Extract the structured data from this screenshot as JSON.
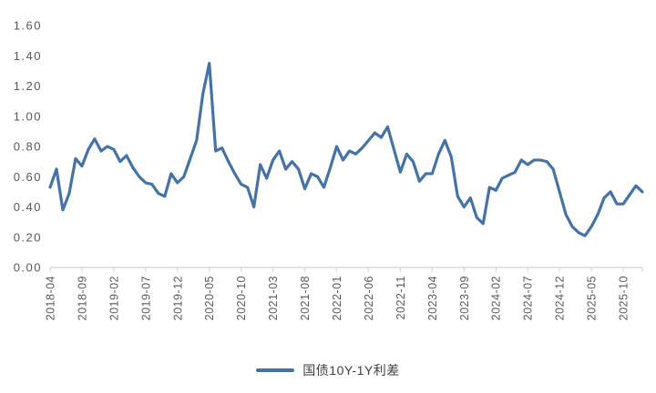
{
  "colors": {
    "series_blue": "#4573a7",
    "axis_gray": "#d9d9d9",
    "tick_label_gray": "#595959",
    "legend_text": "#404040",
    "background": "#ffffff"
  },
  "legend": {
    "label": "国债10Y-1Y利差"
  },
  "chart_data": {
    "type": "line",
    "title": "",
    "xlabel": "",
    "ylabel": "",
    "grid": false,
    "legend_position": "bottom",
    "ylim": [
      0.0,
      1.6
    ],
    "y_tick_labels": [
      "0.00",
      "0.20",
      "0.40",
      "0.60",
      "0.80",
      "1.00",
      "1.20",
      "1.40",
      "1.60"
    ],
    "x_tick_labels": [
      "2018-04",
      "2018-09",
      "2019-02",
      "2019-07",
      "2019-12",
      "2020-05",
      "2020-10",
      "2021-03",
      "2021-08",
      "2022-01",
      "2022-06",
      "2022-11",
      "2023-04",
      "2023-09",
      "2024-02",
      "2024-07",
      "2024-12",
      "2025-05",
      "2025-10"
    ],
    "x_tick_every": 5,
    "series": [
      {
        "name": "国债10Y-1Y利差",
        "color": "#4573a7",
        "x": [
          "2018-04",
          "2018-05",
          "2018-06",
          "2018-07",
          "2018-08",
          "2018-09",
          "2018-10",
          "2018-11",
          "2018-12",
          "2019-01",
          "2019-02",
          "2019-03",
          "2019-04",
          "2019-05",
          "2019-06",
          "2019-07",
          "2019-08",
          "2019-09",
          "2019-10",
          "2019-11",
          "2019-12",
          "2020-01",
          "2020-02",
          "2020-03",
          "2020-04",
          "2020-05",
          "2020-06",
          "2020-07",
          "2020-08",
          "2020-09",
          "2020-10",
          "2020-11",
          "2020-12",
          "2021-01",
          "2021-02",
          "2021-03",
          "2021-04",
          "2021-05",
          "2021-06",
          "2021-07",
          "2021-08",
          "2021-09",
          "2021-10",
          "2021-11",
          "2021-12",
          "2022-01",
          "2022-02",
          "2022-03",
          "2022-04",
          "2022-05",
          "2022-06",
          "2022-07",
          "2022-08",
          "2022-09",
          "2022-10",
          "2022-11",
          "2022-12",
          "2023-01",
          "2023-02",
          "2023-03",
          "2023-04",
          "2023-05",
          "2023-06",
          "2023-07",
          "2023-08",
          "2023-09",
          "2023-10",
          "2023-11",
          "2023-12",
          "2024-01",
          "2024-02",
          "2024-03",
          "2024-04",
          "2024-05",
          "2024-06",
          "2024-07",
          "2024-08",
          "2024-09",
          "2024-10",
          "2024-11",
          "2024-12",
          "2025-01",
          "2025-02",
          "2025-03",
          "2025-04",
          "2025-05",
          "2025-06",
          "2025-07",
          "2025-08",
          "2025-09",
          "2025-10",
          "2025-11",
          "2025-12",
          "2026-01"
        ],
        "values": [
          0.53,
          0.65,
          0.38,
          0.49,
          0.72,
          0.67,
          0.78,
          0.85,
          0.77,
          0.8,
          0.78,
          0.7,
          0.74,
          0.66,
          0.6,
          0.56,
          0.55,
          0.49,
          0.47,
          0.62,
          0.56,
          0.6,
          0.72,
          0.84,
          1.15,
          1.35,
          0.77,
          0.79,
          0.7,
          0.62,
          0.55,
          0.53,
          0.4,
          0.68,
          0.59,
          0.71,
          0.77,
          0.65,
          0.7,
          0.65,
          0.52,
          0.62,
          0.6,
          0.53,
          0.66,
          0.8,
          0.71,
          0.77,
          0.75,
          0.79,
          0.84,
          0.89,
          0.86,
          0.93,
          0.78,
          0.63,
          0.75,
          0.7,
          0.57,
          0.62,
          0.62,
          0.75,
          0.84,
          0.73,
          0.47,
          0.4,
          0.46,
          0.33,
          0.29,
          0.53,
          0.51,
          0.59,
          0.61,
          0.63,
          0.71,
          0.68,
          0.71,
          0.71,
          0.7,
          0.65,
          0.5,
          0.35,
          0.27,
          0.23,
          0.21,
          0.27,
          0.35,
          0.46,
          0.5,
          0.42,
          0.42,
          0.48,
          0.54,
          0.5
        ]
      }
    ]
  }
}
